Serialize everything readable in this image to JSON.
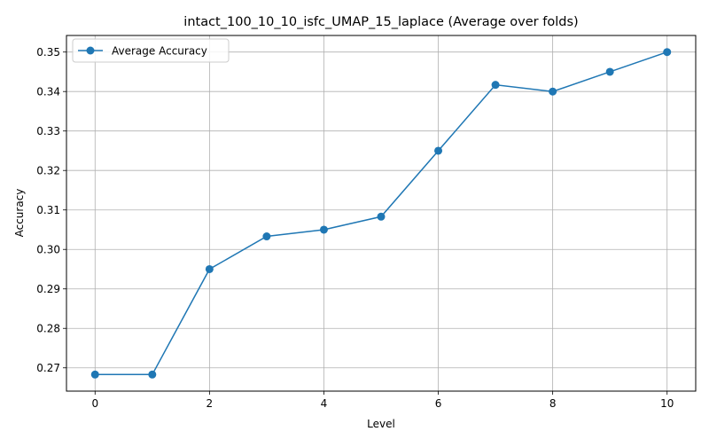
{
  "chart_data": {
    "type": "line",
    "title": "intact_100_10_10_isfc_UMAP_15_laplace (Average over folds)",
    "xlabel": "Level",
    "ylabel": "Accuracy",
    "xlim": [
      -0.5,
      10.5
    ],
    "ylim": [
      0.2641,
      0.3542
    ],
    "x_ticks": [
      0,
      2,
      4,
      6,
      8,
      10
    ],
    "x_tick_labels": [
      "0",
      "2",
      "4",
      "6",
      "8",
      "10"
    ],
    "y_ticks": [
      0.27,
      0.28,
      0.29,
      0.3,
      0.31,
      0.32,
      0.33,
      0.34,
      0.35
    ],
    "y_tick_labels": [
      "0.27",
      "0.28",
      "0.29",
      "0.30",
      "0.31",
      "0.32",
      "0.33",
      "0.34",
      "0.35"
    ],
    "grid": true,
    "legend": {
      "position": "top-left"
    },
    "series": [
      {
        "name": "Average Accuracy",
        "color": "#1f77b4",
        "marker": "circle",
        "x": [
          0,
          1,
          2,
          3,
          4,
          5,
          6,
          7,
          8,
          9,
          10
        ],
        "values": [
          0.2683,
          0.2683,
          0.295,
          0.3033,
          0.305,
          0.3083,
          0.325,
          0.3417,
          0.34,
          0.345,
          0.35
        ]
      }
    ]
  }
}
